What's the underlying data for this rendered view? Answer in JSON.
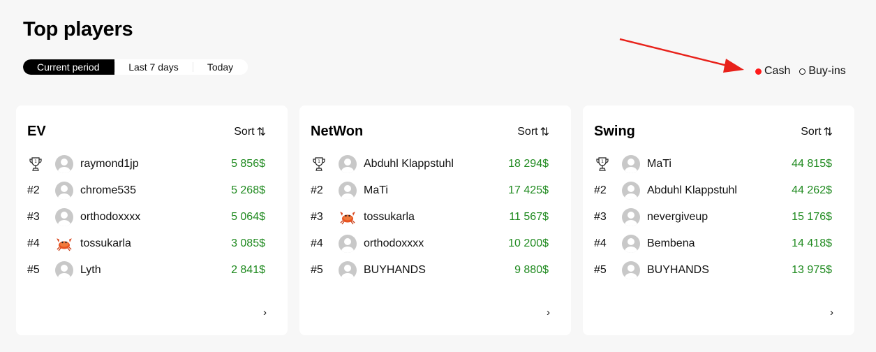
{
  "page": {
    "title": "Top players"
  },
  "periods": [
    {
      "label": "Current period",
      "active": true
    },
    {
      "label": "Last 7 days",
      "active": false
    },
    {
      "label": "Today",
      "active": false
    }
  ],
  "mode": {
    "options": [
      {
        "label": "Cash",
        "selected": true
      },
      {
        "label": "Buy-ins",
        "selected": false
      }
    ],
    "selected_color": "#ff1a1a"
  },
  "annotation": {
    "arrow_color": "#e8211a"
  },
  "colors": {
    "amount": "#1f8a1f"
  },
  "sort_label": "Sort",
  "cards": [
    {
      "title": "EV",
      "rows": [
        {
          "rank": "",
          "rank_icon": "trophy-icon",
          "avatar": "default",
          "name": "raymond1jp",
          "amount": "5 856$"
        },
        {
          "rank": "#2",
          "avatar": "default",
          "name": "chrome535",
          "amount": "5 268$"
        },
        {
          "rank": "#3",
          "avatar": "default",
          "name": "orthodoxxxx",
          "amount": "5 064$"
        },
        {
          "rank": "#4",
          "avatar": "crab",
          "name": "tossukarla",
          "amount": "3 085$"
        },
        {
          "rank": "#5",
          "avatar": "default",
          "name": "Lyth",
          "amount": "2 841$"
        }
      ]
    },
    {
      "title": "NetWon",
      "rows": [
        {
          "rank": "",
          "rank_icon": "trophy-icon",
          "avatar": "default",
          "name": "Abduhl Klappstuhl",
          "amount": "18 294$"
        },
        {
          "rank": "#2",
          "avatar": "default",
          "name": "MaTi",
          "amount": "17 425$"
        },
        {
          "rank": "#3",
          "avatar": "crab",
          "name": "tossukarla",
          "amount": "11 567$"
        },
        {
          "rank": "#4",
          "avatar": "default",
          "name": "orthodoxxxx",
          "amount": "10 200$"
        },
        {
          "rank": "#5",
          "avatar": "default",
          "name": "BUYHANDS",
          "amount": "9 880$"
        }
      ]
    },
    {
      "title": "Swing",
      "rows": [
        {
          "rank": "",
          "rank_icon": "trophy-icon",
          "avatar": "default",
          "name": "MaTi",
          "amount": "44 815$"
        },
        {
          "rank": "#2",
          "avatar": "default",
          "name": "Abduhl Klappstuhl",
          "amount": "44 262$"
        },
        {
          "rank": "#3",
          "avatar": "default",
          "name": "nevergiveup",
          "amount": "15 176$"
        },
        {
          "rank": "#4",
          "avatar": "default",
          "name": "Bembena",
          "amount": "14 418$"
        },
        {
          "rank": "#5",
          "avatar": "default",
          "name": "BUYHANDS",
          "amount": "13 975$"
        }
      ]
    }
  ]
}
